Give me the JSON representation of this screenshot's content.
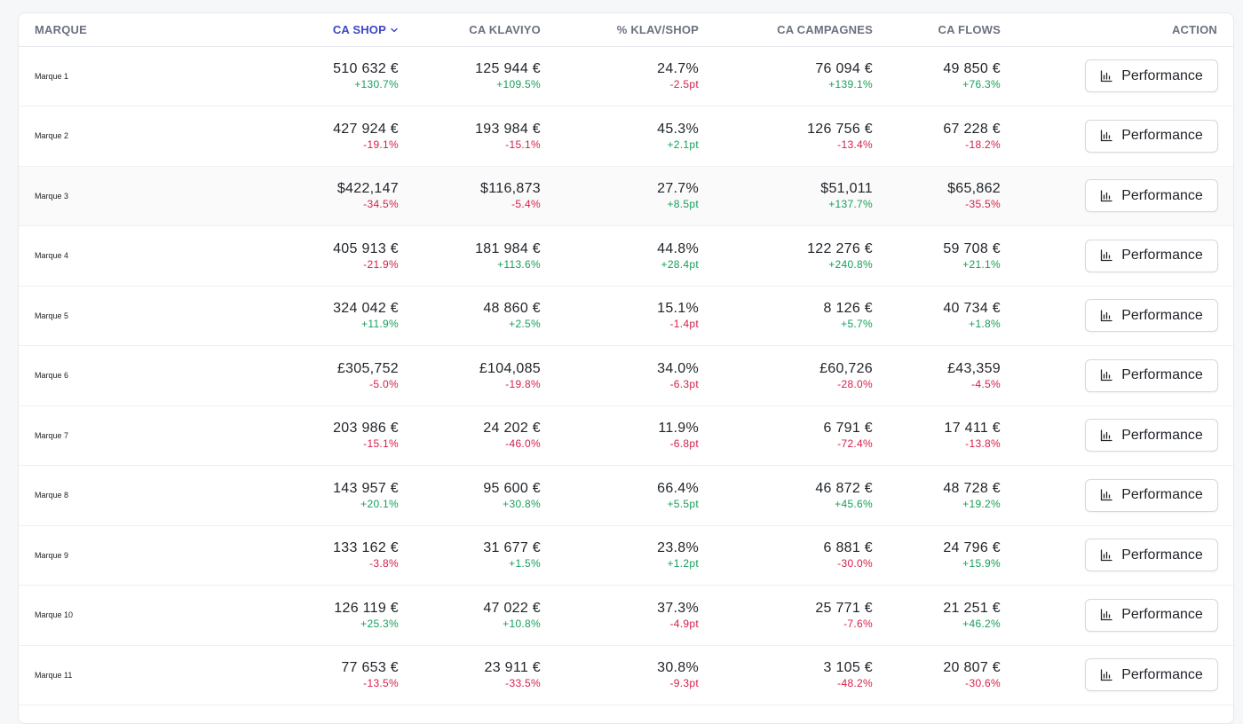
{
  "table": {
    "headers": {
      "brand": "MARQUE",
      "ca_shop": "CA SHOP",
      "ca_klaviyo": "CA KLAVIYO",
      "pct_klav_shop": "% KLAV/SHOP",
      "ca_campagnes": "CA CAMPAGNES",
      "ca_flows": "CA FLOWS",
      "action": "ACTION"
    },
    "sort_icon": "chevron-down-icon",
    "button_icon": "bar-chart-icon",
    "button_label": "Performance",
    "colors": {
      "positive": "#16a05a",
      "negative": "#d6204a",
      "active_header": "#3b47c4"
    },
    "rows": [
      {
        "brand": "Marque 1",
        "shop": "510 632 €",
        "shop_d": "+130.7%",
        "klav": "125 944 €",
        "klav_d": "+109.5%",
        "pct": "24.7%",
        "pct_d": "-2.5pt",
        "camp": "76 094 €",
        "camp_d": "+139.1%",
        "flows": "49 850 €",
        "flows_d": "+76.3%"
      },
      {
        "brand": "Marque 2",
        "shop": "427 924 €",
        "shop_d": "-19.1%",
        "klav": "193 984 €",
        "klav_d": "-15.1%",
        "pct": "45.3%",
        "pct_d": "+2.1pt",
        "camp": "126 756 €",
        "camp_d": "-13.4%",
        "flows": "67 228 €",
        "flows_d": "-18.2%"
      },
      {
        "brand": "Marque 3",
        "shop": "$422,147",
        "shop_d": "-34.5%",
        "klav": "$116,873",
        "klav_d": "-5.4%",
        "pct": "27.7%",
        "pct_d": "+8.5pt",
        "camp": "$51,011",
        "camp_d": "+137.7%",
        "flows": "$65,862",
        "flows_d": "-35.5%"
      },
      {
        "brand": "Marque 4",
        "shop": "405 913 €",
        "shop_d": "-21.9%",
        "klav": "181 984 €",
        "klav_d": "+113.6%",
        "pct": "44.8%",
        "pct_d": "+28.4pt",
        "camp": "122 276 €",
        "camp_d": "+240.8%",
        "flows": "59 708 €",
        "flows_d": "+21.1%"
      },
      {
        "brand": "Marque 5",
        "shop": "324 042 €",
        "shop_d": "+11.9%",
        "klav": "48 860 €",
        "klav_d": "+2.5%",
        "pct": "15.1%",
        "pct_d": "-1.4pt",
        "camp": "8 126 €",
        "camp_d": "+5.7%",
        "flows": "40 734 €",
        "flows_d": "+1.8%"
      },
      {
        "brand": "Marque 6",
        "shop": "£305,752",
        "shop_d": "-5.0%",
        "klav": "£104,085",
        "klav_d": "-19.8%",
        "pct": "34.0%",
        "pct_d": "-6.3pt",
        "camp": "£60,726",
        "camp_d": "-28.0%",
        "flows": "£43,359",
        "flows_d": "-4.5%"
      },
      {
        "brand": "Marque 7",
        "shop": "203 986 €",
        "shop_d": "-15.1%",
        "klav": "24 202 €",
        "klav_d": "-46.0%",
        "pct": "11.9%",
        "pct_d": "-6.8pt",
        "camp": "6 791 €",
        "camp_d": "-72.4%",
        "flows": "17 411 €",
        "flows_d": "-13.8%"
      },
      {
        "brand": "Marque 8",
        "shop": "143 957 €",
        "shop_d": "+20.1%",
        "klav": "95 600 €",
        "klav_d": "+30.8%",
        "pct": "66.4%",
        "pct_d": "+5.5pt",
        "camp": "46 872 €",
        "camp_d": "+45.6%",
        "flows": "48 728 €",
        "flows_d": "+19.2%"
      },
      {
        "brand": "Marque 9",
        "shop": "133 162 €",
        "shop_d": "-3.8%",
        "klav": "31 677 €",
        "klav_d": "+1.5%",
        "pct": "23.8%",
        "pct_d": "+1.2pt",
        "camp": "6 881 €",
        "camp_d": "-30.0%",
        "flows": "24 796 €",
        "flows_d": "+15.9%"
      },
      {
        "brand": "Marque 10",
        "shop": "126 119 €",
        "shop_d": "+25.3%",
        "klav": "47 022 €",
        "klav_d": "+10.8%",
        "pct": "37.3%",
        "pct_d": "-4.9pt",
        "camp": "25 771 €",
        "camp_d": "-7.6%",
        "flows": "21 251 €",
        "flows_d": "+46.2%"
      },
      {
        "brand": "Marque 11",
        "shop": "77 653 €",
        "shop_d": "-13.5%",
        "klav": "23 911 €",
        "klav_d": "-33.5%",
        "pct": "30.8%",
        "pct_d": "-9.3pt",
        "camp": "3 105 €",
        "camp_d": "-48.2%",
        "flows": "20 807 €",
        "flows_d": "-30.6%"
      }
    ]
  }
}
